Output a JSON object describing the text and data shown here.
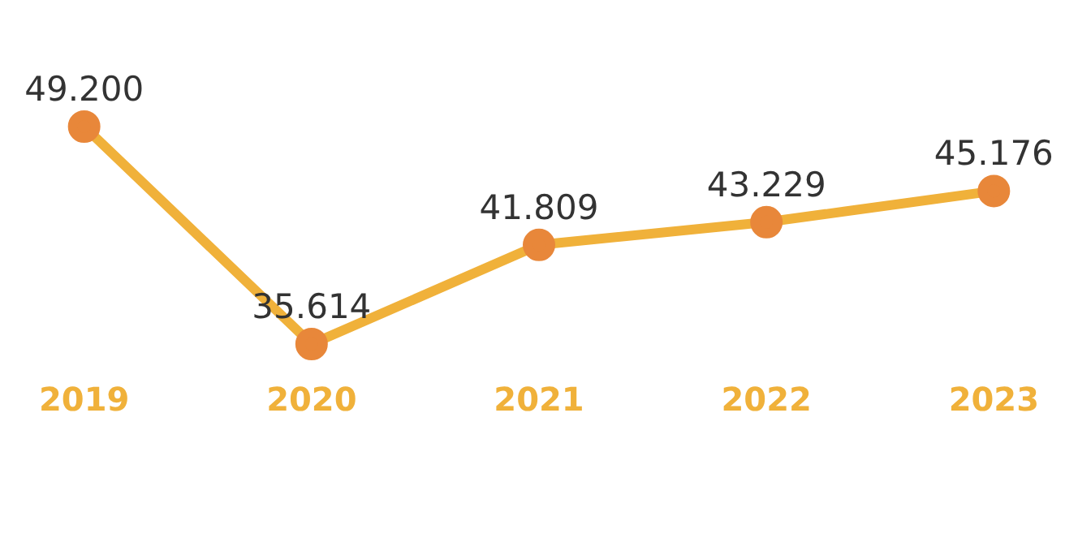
{
  "chart_data": {
    "type": "line",
    "categories": [
      "2019",
      "2020",
      "2021",
      "2022",
      "2023"
    ],
    "series": [
      {
        "color": "#f0b13a",
        "colors": [
          "#e8873a",
          "#e8873a",
          "#e8873a",
          "#e8873a",
          "#e8873a"
        ],
        "values": [
          49200,
          35614,
          41809,
          43229,
          45176
        ],
        "value_labels": [
          "49.200",
          "35.614",
          "41.809",
          "43.229",
          "45.176"
        ]
      }
    ],
    "marker": "circle",
    "line_style": "solid",
    "grid": false,
    "legend": false,
    "tick_labels": "x"
  }
}
